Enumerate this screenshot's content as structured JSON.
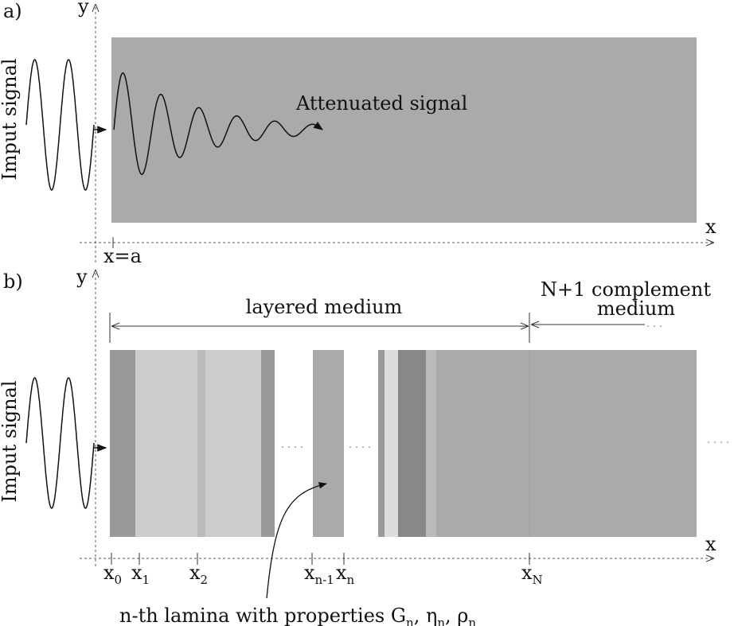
{
  "panel_a": {
    "label": "a)",
    "y_axis": "y",
    "x_axis": "x",
    "input": "Imput signal",
    "output": "Attenuated signal",
    "interface": "x=a"
  },
  "panel_b": {
    "label": "b)",
    "y_axis": "y",
    "x_axis": "x",
    "input": "Imput signal",
    "layered": "layered medium",
    "complement": [
      "N+1 complement",
      "medium"
    ],
    "ticks": [
      {
        "base": "x",
        "sub": "0"
      },
      {
        "base": "x",
        "sub": "1"
      },
      {
        "base": "x",
        "sub": "2"
      },
      {
        "base": "x",
        "sub": "n-1"
      },
      {
        "base": "x",
        "sub": "n"
      },
      {
        "base": "x",
        "sub": "N"
      }
    ],
    "caption": [
      {
        "text": "n-th lamina with properties G",
        "sub": "n"
      },
      {
        "text": ",  η",
        "sub": "n"
      },
      {
        "text": ", ρ",
        "sub": "n"
      }
    ]
  }
}
